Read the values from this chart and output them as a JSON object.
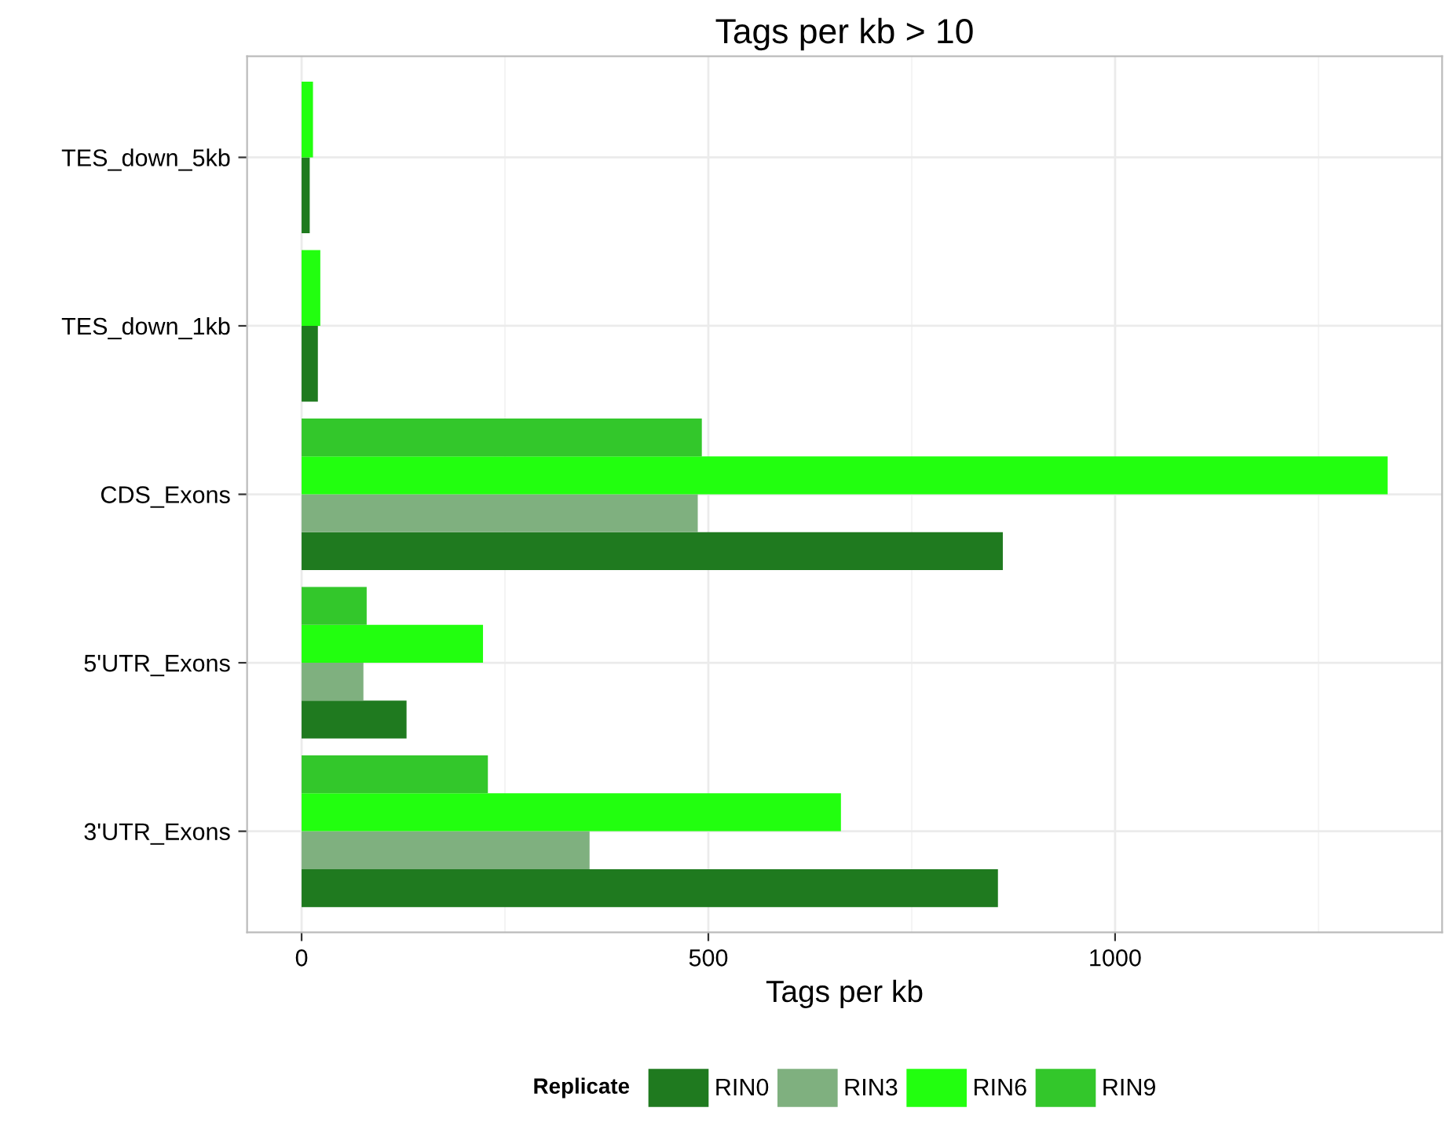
{
  "chart_data": {
    "type": "bar",
    "orientation": "horizontal",
    "title": "Tags per kb > 10",
    "xlabel": "Tags per kb",
    "legend_title": "Replicate",
    "categories": [
      "TES_down_5kb",
      "TES_down_1kb",
      "CDS_Exons",
      "5'UTR_Exons",
      "3'UTR_Exons"
    ],
    "series": [
      {
        "name": "RIN0",
        "color": "#1f7a1f",
        "values": [
          10,
          20,
          862,
          129,
          856
        ]
      },
      {
        "name": "RIN3",
        "color": "#7fb07f",
        "values": [
          null,
          null,
          487,
          76,
          354
        ]
      },
      {
        "name": "RIN6",
        "color": "#22ff0f",
        "values": [
          14,
          23,
          1335,
          223,
          663
        ]
      },
      {
        "name": "RIN9",
        "color": "#33c72b",
        "values": [
          null,
          null,
          492,
          80,
          229
        ]
      }
    ],
    "xlim": [
      -67,
      1402
    ],
    "xticks": [
      0,
      500,
      1000
    ],
    "grid": true,
    "legend": "bottom"
  }
}
